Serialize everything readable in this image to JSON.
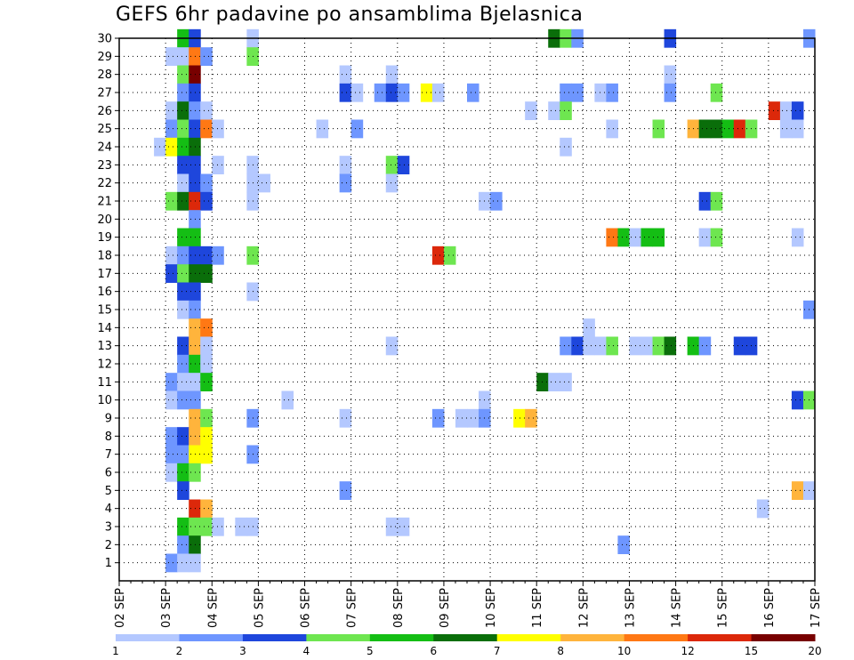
{
  "chart_data": {
    "type": "heatmap",
    "title": "GEFS 6hr padavine po ansamblima Bjelasnica",
    "x_tick_labels": [
      "02 SEP",
      "03 SEP",
      "04 SEP",
      "05 SEP",
      "06 SEP",
      "07 SEP",
      "08 SEP",
      "09 SEP",
      "10 SEP",
      "11 SEP",
      "12 SEP",
      "13 SEP",
      "14 SEP",
      "15 SEP",
      "16 SEP",
      "17 SEP"
    ],
    "y_tick_labels": [
      "1",
      "2",
      "3",
      "4",
      "5",
      "6",
      "7",
      "8",
      "9",
      "10",
      "11",
      "12",
      "13",
      "14",
      "15",
      "16",
      "17",
      "18",
      "19",
      "20",
      "21",
      "22",
      "23",
      "24",
      "25",
      "26",
      "27",
      "28",
      "29",
      "30"
    ],
    "x_range_days": [
      0,
      15
    ],
    "y_range": [
      0,
      30
    ],
    "x_step_days": 0.25,
    "grid": true,
    "colorbar": {
      "labels": [
        "1",
        "2",
        "3",
        "4",
        "5",
        "6",
        "7",
        "8",
        "10",
        "12",
        "15",
        "20"
      ],
      "colors": [
        "#b4c8ff",
        "#6e96ff",
        "#1e46dc",
        "#6ee650",
        "#14be14",
        "#0a6e0a",
        "#ffff00",
        "#ffb43c",
        "#ff7814",
        "#dc280a",
        "#780000"
      ]
    },
    "cells": [
      [
        1.25,
        30,
        4
      ],
      [
        1.5,
        30,
        2
      ],
      [
        2.75,
        30,
        0
      ],
      [
        9.25,
        30,
        5
      ],
      [
        9.5,
        30,
        3
      ],
      [
        9.75,
        30,
        1
      ],
      [
        11.75,
        30,
        2
      ],
      [
        14.75,
        30,
        1
      ],
      [
        1,
        29,
        0
      ],
      [
        1.25,
        29,
        0
      ],
      [
        1.5,
        29,
        8
      ],
      [
        1.75,
        29,
        1
      ],
      [
        2.75,
        29,
        3
      ],
      [
        1.25,
        28,
        3
      ],
      [
        1.5,
        28,
        10
      ],
      [
        4.75,
        28,
        0
      ],
      [
        5.75,
        28,
        0
      ],
      [
        11.75,
        28,
        0
      ],
      [
        1.25,
        27,
        1
      ],
      [
        1.5,
        27,
        2
      ],
      [
        4.75,
        27,
        2
      ],
      [
        5,
        27,
        0
      ],
      [
        5.5,
        27,
        1
      ],
      [
        5.75,
        27,
        2
      ],
      [
        6,
        27,
        1
      ],
      [
        6.5,
        27,
        6
      ],
      [
        6.75,
        27,
        0
      ],
      [
        7.5,
        27,
        1
      ],
      [
        9.5,
        27,
        1
      ],
      [
        9.75,
        27,
        1
      ],
      [
        10.25,
        27,
        0
      ],
      [
        10.5,
        27,
        1
      ],
      [
        11.75,
        27,
        1
      ],
      [
        12.75,
        27,
        3
      ],
      [
        1,
        26,
        0
      ],
      [
        1.25,
        26,
        5
      ],
      [
        1.5,
        26,
        1
      ],
      [
        1.75,
        26,
        0
      ],
      [
        8.75,
        26,
        0
      ],
      [
        9.25,
        26,
        0
      ],
      [
        9.5,
        26,
        3
      ],
      [
        14,
        26,
        9
      ],
      [
        14.25,
        26,
        0
      ],
      [
        14.5,
        26,
        2
      ],
      [
        1,
        25,
        1
      ],
      [
        1.25,
        25,
        3
      ],
      [
        1.5,
        25,
        2
      ],
      [
        1.75,
        25,
        8
      ],
      [
        2,
        25,
        0
      ],
      [
        4.25,
        25,
        0
      ],
      [
        5,
        25,
        1
      ],
      [
        10.5,
        25,
        0
      ],
      [
        11.5,
        25,
        3
      ],
      [
        12.25,
        25,
        7
      ],
      [
        12.5,
        25,
        5
      ],
      [
        12.75,
        25,
        5
      ],
      [
        13,
        25,
        4
      ],
      [
        13.25,
        25,
        9
      ],
      [
        13.5,
        25,
        3
      ],
      [
        14.25,
        25,
        0
      ],
      [
        14.5,
        25,
        0
      ],
      [
        0.75,
        24,
        0
      ],
      [
        1,
        24,
        6
      ],
      [
        1.25,
        24,
        4
      ],
      [
        1.5,
        24,
        5
      ],
      [
        9.5,
        24,
        0
      ],
      [
        1.25,
        23,
        2
      ],
      [
        1.5,
        23,
        2
      ],
      [
        2,
        23,
        0
      ],
      [
        2.75,
        23,
        0
      ],
      [
        4.75,
        23,
        0
      ],
      [
        5.75,
        23,
        3
      ],
      [
        6,
        23,
        2
      ],
      [
        1.25,
        22,
        0
      ],
      [
        1.5,
        22,
        2
      ],
      [
        1.75,
        22,
        1
      ],
      [
        2.75,
        22,
        0
      ],
      [
        3,
        22,
        0
      ],
      [
        4.75,
        22,
        1
      ],
      [
        5.75,
        22,
        0
      ],
      [
        1,
        21,
        3
      ],
      [
        1.25,
        21,
        5
      ],
      [
        1.5,
        21,
        9
      ],
      [
        1.75,
        21,
        2
      ],
      [
        2.75,
        21,
        0
      ],
      [
        7.75,
        21,
        0
      ],
      [
        8,
        21,
        1
      ],
      [
        12.5,
        21,
        2
      ],
      [
        12.75,
        21,
        3
      ],
      [
        1.5,
        20,
        1
      ],
      [
        1.25,
        19,
        4
      ],
      [
        1.5,
        19,
        4
      ],
      [
        10.5,
        19,
        8
      ],
      [
        10.75,
        19,
        4
      ],
      [
        11,
        19,
        0
      ],
      [
        11.25,
        19,
        4
      ],
      [
        11.5,
        19,
        4
      ],
      [
        12.5,
        19,
        0
      ],
      [
        12.75,
        19,
        3
      ],
      [
        14.5,
        19,
        0
      ],
      [
        1,
        18,
        0
      ],
      [
        1.25,
        18,
        1
      ],
      [
        1.5,
        18,
        2
      ],
      [
        1.75,
        18,
        2
      ],
      [
        2,
        18,
        1
      ],
      [
        2.75,
        18,
        3
      ],
      [
        6.75,
        18,
        9
      ],
      [
        7,
        18,
        3
      ],
      [
        1,
        17,
        2
      ],
      [
        1.25,
        17,
        3
      ],
      [
        1.5,
        17,
        5
      ],
      [
        1.75,
        17,
        5
      ],
      [
        1.25,
        16,
        2
      ],
      [
        1.5,
        16,
        2
      ],
      [
        2.75,
        16,
        0
      ],
      [
        1.25,
        15,
        0
      ],
      [
        1.5,
        15,
        1
      ],
      [
        14.75,
        15,
        1
      ],
      [
        1.5,
        14,
        7
      ],
      [
        1.75,
        14,
        8
      ],
      [
        10,
        14,
        0
      ],
      [
        1.25,
        13,
        2
      ],
      [
        1.5,
        13,
        7
      ],
      [
        1.75,
        13,
        0
      ],
      [
        5.75,
        13,
        0
      ],
      [
        9.5,
        13,
        1
      ],
      [
        9.75,
        13,
        2
      ],
      [
        10,
        13,
        0
      ],
      [
        10.25,
        13,
        0
      ],
      [
        10.5,
        13,
        3
      ],
      [
        11,
        13,
        0
      ],
      [
        11.25,
        13,
        0
      ],
      [
        11.5,
        13,
        3
      ],
      [
        11.75,
        13,
        5
      ],
      [
        12.25,
        13,
        4
      ],
      [
        12.5,
        13,
        1
      ],
      [
        13.25,
        13,
        2
      ],
      [
        13.5,
        13,
        2
      ],
      [
        1.25,
        12,
        1
      ],
      [
        1.5,
        12,
        4
      ],
      [
        1.75,
        12,
        0
      ],
      [
        1,
        11,
        1
      ],
      [
        1.25,
        11,
        0
      ],
      [
        1.5,
        11,
        0
      ],
      [
        1.75,
        11,
        4
      ],
      [
        9,
        11,
        5
      ],
      [
        9.25,
        11,
        0
      ],
      [
        9.5,
        11,
        0
      ],
      [
        1,
        10,
        0
      ],
      [
        1.25,
        10,
        1
      ],
      [
        1.5,
        10,
        1
      ],
      [
        3.5,
        10,
        0
      ],
      [
        7.75,
        10,
        0
      ],
      [
        14.5,
        10,
        2
      ],
      [
        14.75,
        10,
        3
      ],
      [
        1.5,
        9,
        7
      ],
      [
        1.75,
        9,
        3
      ],
      [
        2.75,
        9,
        1
      ],
      [
        4.75,
        9,
        0
      ],
      [
        6.75,
        9,
        1
      ],
      [
        7.25,
        9,
        0
      ],
      [
        7.5,
        9,
        0
      ],
      [
        7.75,
        9,
        1
      ],
      [
        8.5,
        9,
        6
      ],
      [
        8.75,
        9,
        7
      ],
      [
        1,
        8,
        1
      ],
      [
        1.25,
        8,
        2
      ],
      [
        1.5,
        8,
        7
      ],
      [
        1.75,
        8,
        6
      ],
      [
        1,
        7,
        1
      ],
      [
        1.25,
        7,
        1
      ],
      [
        1.5,
        7,
        6
      ],
      [
        1.75,
        7,
        6
      ],
      [
        2.75,
        7,
        1
      ],
      [
        1,
        6,
        0
      ],
      [
        1.25,
        6,
        4
      ],
      [
        1.5,
        6,
        3
      ],
      [
        1.25,
        5,
        2
      ],
      [
        4.75,
        5,
        1
      ],
      [
        14.5,
        5,
        7
      ],
      [
        14.75,
        5,
        0
      ],
      [
        1.5,
        4,
        9
      ],
      [
        1.75,
        4,
        7
      ],
      [
        13.75,
        4,
        0
      ],
      [
        1.25,
        3,
        4
      ],
      [
        1.5,
        3,
        3
      ],
      [
        1.75,
        3,
        3
      ],
      [
        2,
        3,
        0
      ],
      [
        2.5,
        3,
        0
      ],
      [
        2.75,
        3,
        0
      ],
      [
        5.75,
        3,
        0
      ],
      [
        6,
        3,
        0
      ],
      [
        1.25,
        2,
        1
      ],
      [
        1.5,
        2,
        5
      ],
      [
        10.75,
        2,
        1
      ],
      [
        1,
        1,
        1
      ],
      [
        1.25,
        1,
        0
      ],
      [
        1.5,
        1,
        0
      ]
    ]
  }
}
